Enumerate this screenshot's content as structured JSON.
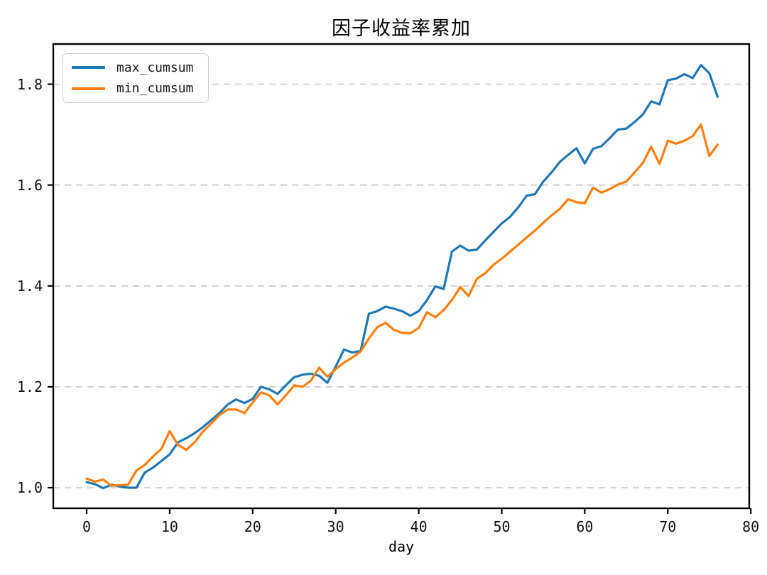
{
  "title": "因子收益率累加",
  "xlabel": "day",
  "legend": {
    "entries": [
      {
        "label": "max_cumsum",
        "color": "#1f77b4"
      },
      {
        "label": "min_cumsum",
        "color": "#ff7f0e"
      }
    ]
  },
  "axes": {
    "x_tick_labels": [
      "0",
      "10",
      "20",
      "30",
      "40",
      "50",
      "60",
      "70",
      "80"
    ],
    "y_tick_labels": [
      "1.0",
      "1.2",
      "1.4",
      "1.6",
      "1.8"
    ]
  },
  "colors": {
    "max_line": "#1f77b4",
    "min_line": "#ff7f0e",
    "grid": "#cccccc",
    "spine": "#000000",
    "tick_text": "#111111"
  },
  "chart_data": {
    "type": "line",
    "title": "因子收益率累加",
    "xlabel": "day",
    "ylabel": "",
    "grid": "horizontal-dashed",
    "legend_position": "upper-left",
    "x_ticks": [
      0,
      10,
      20,
      30,
      40,
      50,
      60,
      70,
      80
    ],
    "y_ticks": [
      1.0,
      1.2,
      1.4,
      1.6,
      1.8
    ],
    "xlim": [
      -4.0,
      79.8
    ],
    "ylim": [
      0.959,
      1.883
    ],
    "x": [
      0,
      1,
      2,
      3,
      4,
      5,
      6,
      7,
      8,
      9,
      10,
      11,
      12,
      13,
      14,
      15,
      16,
      17,
      18,
      19,
      20,
      21,
      22,
      23,
      24,
      25,
      26,
      27,
      28,
      29,
      30,
      31,
      32,
      33,
      34,
      35,
      36,
      37,
      38,
      39,
      40,
      41,
      42,
      43,
      44,
      45,
      46,
      47,
      48,
      49,
      50,
      51,
      52,
      53,
      54,
      55,
      56,
      57,
      58,
      59,
      60,
      61,
      62,
      63,
      64,
      65,
      66,
      67,
      68,
      69,
      70,
      71,
      72,
      73,
      74,
      75,
      76
    ],
    "series": [
      {
        "name": "max_cumsum",
        "color": "#1f77b4",
        "values": [
          1.011,
          1.007,
          0.999,
          1.006,
          1.002,
          1.0,
          1.0,
          1.03,
          1.04,
          1.053,
          1.066,
          1.09,
          1.098,
          1.108,
          1.12,
          1.134,
          1.148,
          1.165,
          1.175,
          1.168,
          1.176,
          1.2,
          1.195,
          1.186,
          1.203,
          1.219,
          1.224,
          1.226,
          1.222,
          1.208,
          1.24,
          1.274,
          1.268,
          1.271,
          1.345,
          1.35,
          1.359,
          1.355,
          1.35,
          1.341,
          1.35,
          1.372,
          1.399,
          1.394,
          1.468,
          1.48,
          1.47,
          1.472,
          1.49,
          1.507,
          1.524,
          1.537,
          1.556,
          1.579,
          1.582,
          1.607,
          1.625,
          1.646,
          1.66,
          1.673,
          1.643,
          1.672,
          1.677,
          1.693,
          1.71,
          1.712,
          1.725,
          1.74,
          1.766,
          1.76,
          1.808,
          1.811,
          1.82,
          1.812,
          1.838,
          1.822,
          1.775
        ]
      },
      {
        "name": "min_cumsum",
        "color": "#ff7f0e",
        "values": [
          1.018,
          1.012,
          1.016,
          1.004,
          1.005,
          1.006,
          1.034,
          1.045,
          1.062,
          1.077,
          1.112,
          1.085,
          1.075,
          1.09,
          1.111,
          1.127,
          1.144,
          1.155,
          1.155,
          1.148,
          1.169,
          1.189,
          1.183,
          1.165,
          1.183,
          1.203,
          1.2,
          1.212,
          1.238,
          1.22,
          1.235,
          1.248,
          1.258,
          1.27,
          1.296,
          1.318,
          1.327,
          1.313,
          1.307,
          1.306,
          1.317,
          1.348,
          1.338,
          1.352,
          1.372,
          1.398,
          1.38,
          1.414,
          1.425,
          1.442,
          1.454,
          1.468,
          1.482,
          1.496,
          1.51,
          1.525,
          1.54,
          1.553,
          1.572,
          1.566,
          1.564,
          1.595,
          1.585,
          1.592,
          1.601,
          1.607,
          1.625,
          1.644,
          1.676,
          1.642,
          1.688,
          1.682,
          1.688,
          1.697,
          1.72,
          1.658,
          1.68
        ]
      }
    ]
  }
}
